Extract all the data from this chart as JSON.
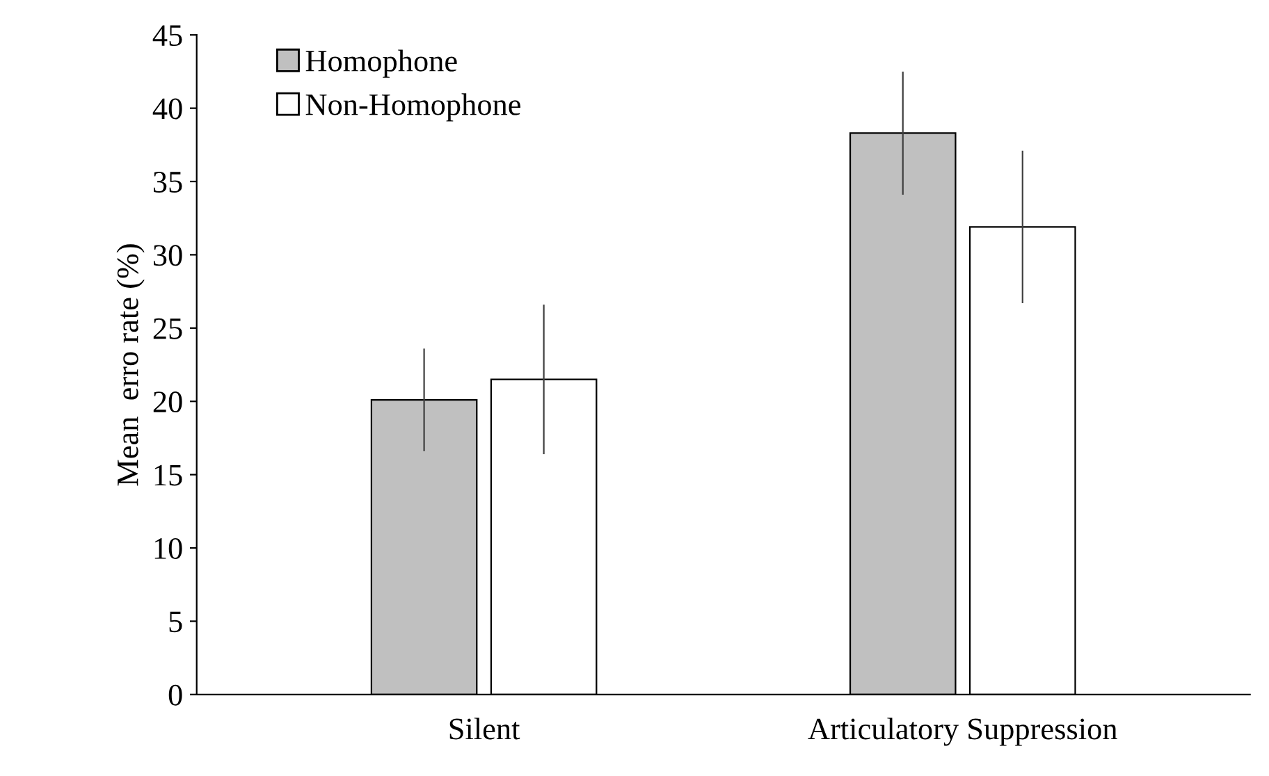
{
  "chart_data": {
    "type": "bar",
    "ylabel": "Mean  erro rate (%)",
    "categories": [
      "Silent",
      "Articulatory Suppression"
    ],
    "series": [
      {
        "name": "Homophone",
        "color": "#c0c0c0",
        "values": [
          20.1,
          38.3
        ],
        "errors": [
          3.5,
          4.2
        ]
      },
      {
        "name": "Non-Homophone",
        "color": "#ffffff",
        "values": [
          21.5,
          31.9
        ],
        "errors": [
          5.1,
          5.2
        ]
      }
    ],
    "ylim": [
      0,
      45
    ],
    "yticks": [
      0,
      5,
      10,
      15,
      20,
      25,
      30,
      35,
      40,
      45
    ],
    "grid": false,
    "legend": "top left"
  }
}
